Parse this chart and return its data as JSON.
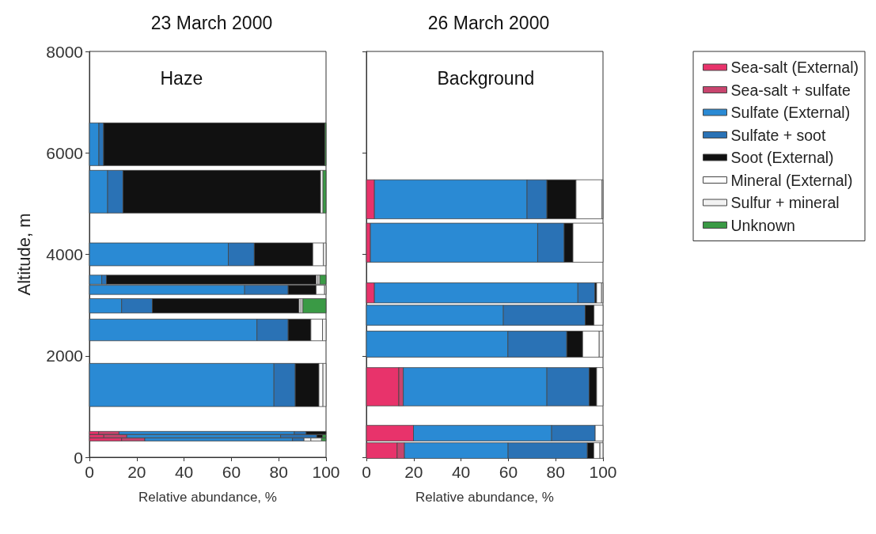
{
  "chart_data": [
    {
      "type": "bar",
      "orientation": "horizontal",
      "stacked": true,
      "title": "23 March 2000",
      "annotations": [
        "Haze"
      ],
      "xlabel": "Relative abundance, %",
      "ylabel": "Altitude, m",
      "xlim": [
        0,
        100
      ],
      "xticks": [
        0,
        20,
        40,
        60,
        80,
        100
      ],
      "ylim": [
        0,
        8000
      ],
      "yticks": [
        0,
        2000,
        4000,
        6000,
        8000
      ],
      "grid": false,
      "legend": false,
      "x": [
        6170,
        5235,
        4000,
        3500,
        3300,
        2985,
        2510,
        1425,
        480,
        415,
        350
      ],
      "series": [
        {
          "color": "#e8336b",
          "values": [
            null,
            null,
            null,
            null,
            null,
            null,
            null,
            null,
            3.9,
            6.1,
            13.6
          ]
        },
        {
          "color": "#c8456e",
          "values": [
            null,
            null,
            null,
            null,
            null,
            null,
            null,
            null,
            8.6,
            9.7,
            9.8
          ]
        },
        {
          "color": "#2a8ad4",
          "values": [
            4,
            7.7,
            58.7,
            5.2,
            65.6,
            13.6,
            70.8,
            78,
            74.1,
            65,
            62.4
          ]
        },
        {
          "color": "#2a72b5",
          "values": [
            2,
            6.5,
            11,
            2,
            18.4,
            13,
            13.2,
            9,
            5,
            15.3,
            4.9
          ]
        },
        {
          "color": "#111111",
          "values": [
            93.5,
            83.5,
            24.7,
            88.6,
            11.8,
            62,
            9.6,
            10,
            8.4,
            2.4,
            null
          ]
        },
        {
          "color": "#ffffff",
          "values": [
            null,
            1,
            4.5,
            0.8,
            3.6,
            0.8,
            4.9,
            1.7,
            null,
            null,
            2.9
          ]
        },
        {
          "color": "#f2f2f2",
          "values": [
            null,
            null,
            1.1,
            0.8,
            0.6,
            0.8,
            1.5,
            1.3,
            null,
            null,
            4.5
          ]
        },
        {
          "color": "#3a9a45",
          "values": [
            0.5,
            1.3,
            null,
            2.6,
            null,
            9.8,
            null,
            null,
            null,
            1.5,
            1.9
          ]
        }
      ]
    },
    {
      "type": "bar",
      "orientation": "horizontal",
      "stacked": true,
      "title": "26 March 2000",
      "annotations": [
        "Background"
      ],
      "xlabel": "Relative abundance, %",
      "xlim": [
        0,
        100
      ],
      "xticks": [
        0,
        20,
        40,
        60,
        80,
        100
      ],
      "ylim": [
        0,
        8000
      ],
      "yticks": [
        0,
        2000,
        4000,
        6000,
        8000
      ],
      "tick_labels": "x",
      "grid": false,
      "legend": "right",
      "x": [
        5085,
        4230,
        3240,
        2800,
        2230,
        1390,
        475,
        132
      ],
      "series": [
        {
          "name": "Sea-salt (External)",
          "color": "#e8336b",
          "values": [
            3.4,
            1.7,
            3.4,
            null,
            null,
            13.7,
            19.9,
            13
          ]
        },
        {
          "name": "Sea-salt + sulfate",
          "color": "#c8456e",
          "values": [
            null,
            null,
            null,
            null,
            null,
            1.9,
            null,
            3.1
          ]
        },
        {
          "name": "Sulfate (External)",
          "color": "#2a8ad4",
          "values": [
            64.5,
            70.7,
            86,
            57.9,
            59.8,
            60.7,
            58.4,
            43.8
          ]
        },
        {
          "name": "Sulfate + soot",
          "color": "#2a72b5",
          "values": [
            8.4,
            11.2,
            7.2,
            34.6,
            24.9,
            17.9,
            18.4,
            33.5
          ]
        },
        {
          "name": "Soot (External)",
          "color": "#111111",
          "values": [
            12.3,
            3.7,
            0.7,
            3.7,
            6.7,
            3.1,
            null,
            2.7
          ]
        },
        {
          "name": "Mineral (External)",
          "color": "#ffffff",
          "values": [
            11,
            12.7,
            2.1,
            3.8,
            7,
            2.7,
            3.3,
            2.6
          ]
        },
        {
          "name": "Sulfur + mineral",
          "color": "#f2f2f2",
          "values": [
            0.4,
            null,
            0.6,
            null,
            1.6,
            null,
            null,
            1.3
          ]
        },
        {
          "name": "Unknown",
          "color": "#3a9a45",
          "values": [
            null,
            null,
            null,
            null,
            null,
            null,
            null,
            null
          ]
        }
      ]
    }
  ]
}
